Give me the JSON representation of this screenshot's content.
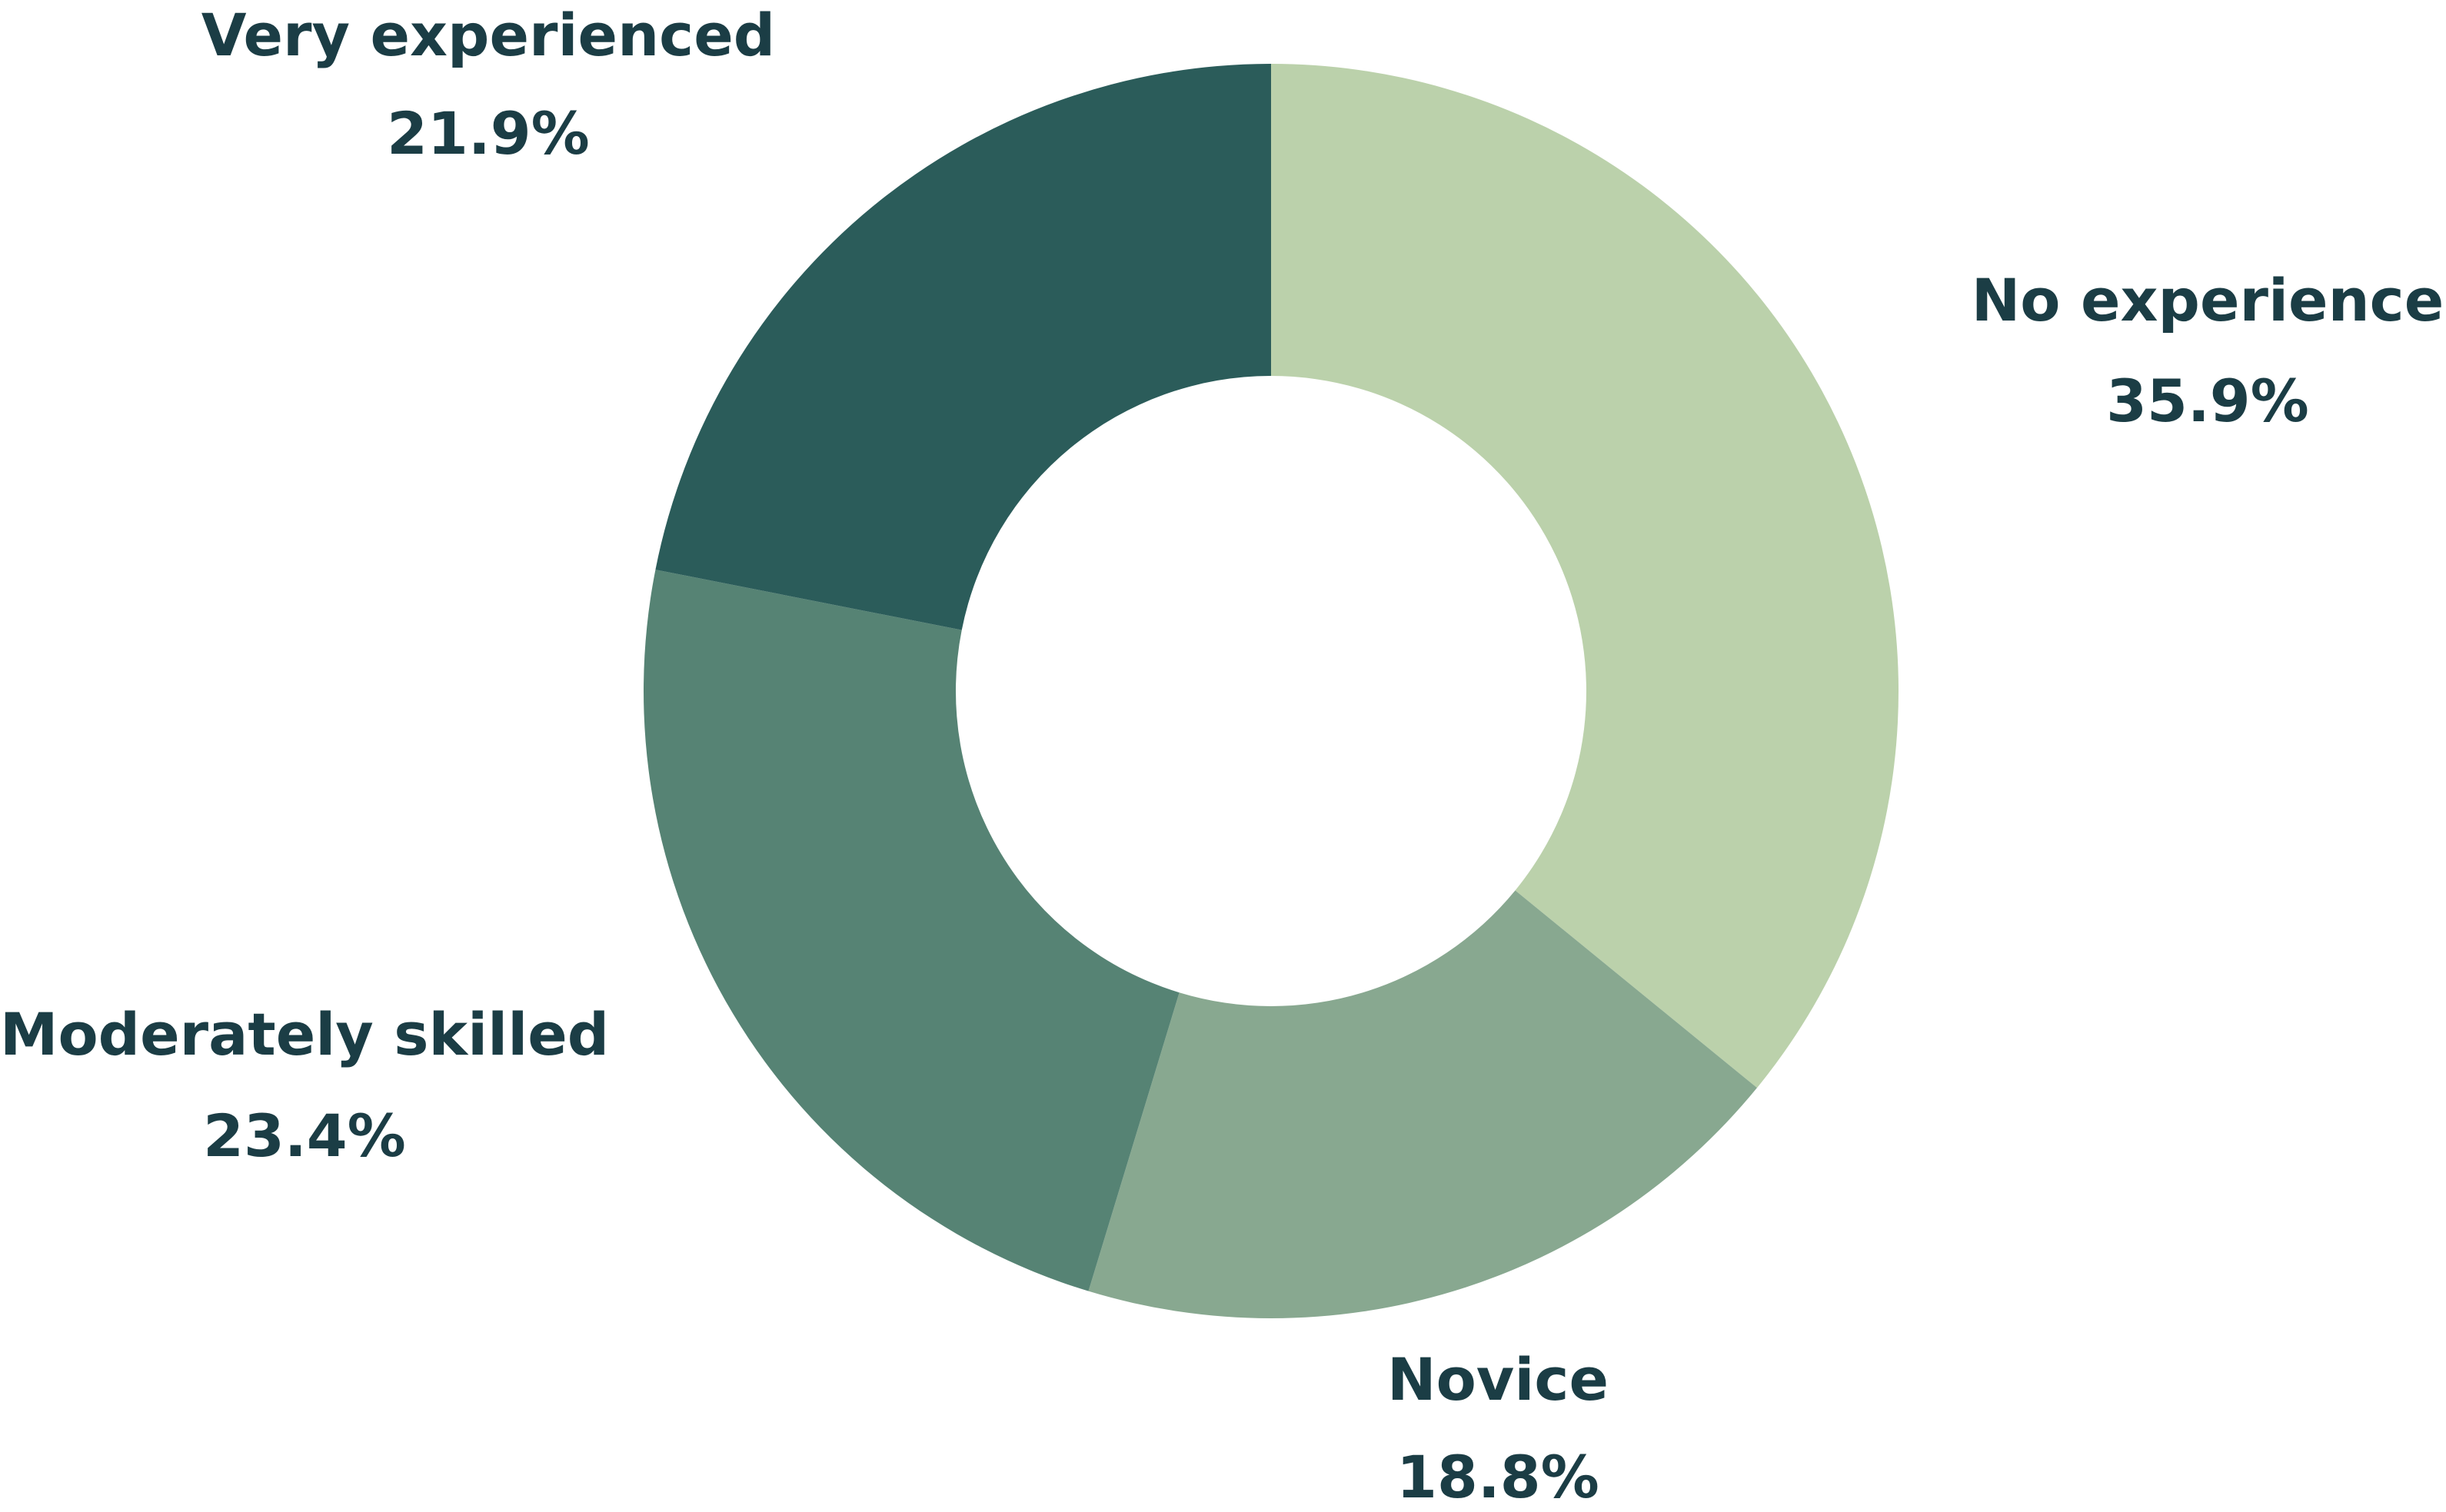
{
  "chart_data": {
    "type": "donut",
    "categories": [
      "No experience",
      "Novice",
      "Moderately skilled",
      "Very experienced"
    ],
    "values": [
      35.9,
      18.8,
      23.4,
      21.9
    ],
    "value_labels": [
      "35.9%",
      "18.8%",
      "23.4%",
      "21.9%"
    ],
    "colors": [
      "#bbd1ab",
      "#88a890",
      "#568374",
      "#2b5c5a"
    ]
  }
}
